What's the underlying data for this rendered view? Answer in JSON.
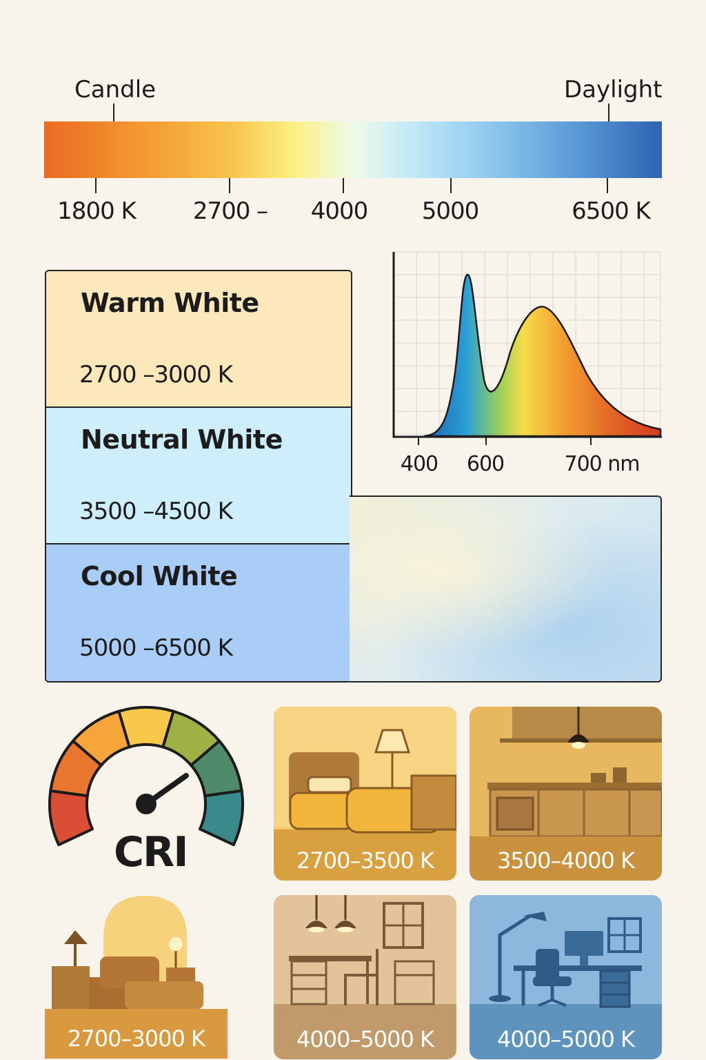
{
  "scale": {
    "start_label": "Candle",
    "end_label": "Daylight",
    "ticks": [
      "1800 K",
      "2700 –",
      "4000",
      "5000",
      "6500 K"
    ]
  },
  "tiers": [
    {
      "title": "Warm White",
      "range": "2700 –3000 K",
      "color": "#fde8bc"
    },
    {
      "title": "Neutral White",
      "range": "3500 –4500 K",
      "color": "#cdeefa"
    },
    {
      "title": "Cool White",
      "range": "5000 –6500 K",
      "color": "#a9cdf6"
    }
  ],
  "spectrum": {
    "x_labels": [
      "400",
      "600",
      "700 nm"
    ]
  },
  "cri": {
    "label": "CRI",
    "segment_colors": [
      "#d94e34",
      "#e8762e",
      "#f5a53a",
      "#f9c84a",
      "#9fb145",
      "#4f8a6a",
      "#3a8a8c"
    ]
  },
  "scenes": [
    {
      "name": "bedroom",
      "label": "2700–3500 K",
      "color": "#e8b04a"
    },
    {
      "name": "kitchen",
      "label": "3500–4000 K",
      "color": "#dba650"
    },
    {
      "name": "living-room",
      "label": "2700–3000 K",
      "color": "#d99a3e"
    },
    {
      "name": "dining",
      "label": "4000–5000 K",
      "color": "#c19a6c"
    },
    {
      "name": "office",
      "label": "4000–5000 K",
      "color": "#5d93bd"
    }
  ]
}
